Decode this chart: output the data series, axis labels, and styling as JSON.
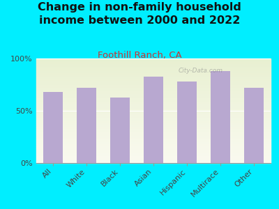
{
  "title": "Change in non-family household\nincome between 2000 and 2022",
  "subtitle": "Foothill Ranch, CA",
  "categories": [
    "All",
    "White",
    "Black",
    "Asian",
    "Hispanic",
    "Multirace",
    "Other"
  ],
  "values": [
    68,
    72,
    63,
    83,
    78,
    88,
    72
  ],
  "bar_color": "#b8a8d0",
  "title_color": "#111111",
  "subtitle_color": "#cc3333",
  "background_color": "#00eeff",
  "ylabel_ticks": [
    "0%",
    "50%",
    "100%"
  ],
  "ytick_values": [
    0,
    50,
    100
  ],
  "ylim": [
    0,
    100
  ],
  "title_fontsize": 11.5,
  "subtitle_fontsize": 9.5,
  "tick_fontsize": 8,
  "watermark": "City-Data.com"
}
